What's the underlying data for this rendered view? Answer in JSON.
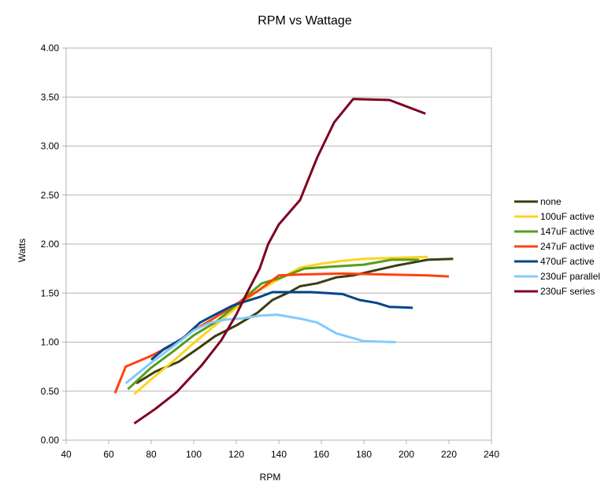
{
  "chart_data": {
    "type": "line",
    "title": "RPM vs Wattage",
    "xlabel": "RPM",
    "ylabel": "Watts",
    "xlim": [
      40,
      240
    ],
    "ylim": [
      0,
      4
    ],
    "xticks": [
      "40",
      "60",
      "80",
      "100",
      "120",
      "140",
      "160",
      "180",
      "200",
      "220",
      "240"
    ],
    "yticks": [
      "0.00",
      "0.50",
      "1.00",
      "1.50",
      "2.00",
      "2.50",
      "3.00",
      "3.50",
      "4.00"
    ],
    "grid": true,
    "legend_position": "right",
    "series": [
      {
        "name": "none",
        "color": "#3d3d0f",
        "points": [
          [
            73,
            0.58
          ],
          [
            82,
            0.7
          ],
          [
            93,
            0.8
          ],
          [
            103,
            0.95
          ],
          [
            110,
            1.06
          ],
          [
            120,
            1.17
          ],
          [
            130,
            1.3
          ],
          [
            137,
            1.43
          ],
          [
            145,
            1.51
          ],
          [
            150,
            1.57
          ],
          [
            158,
            1.6
          ],
          [
            167,
            1.66
          ],
          [
            175,
            1.68
          ],
          [
            185,
            1.73
          ],
          [
            195,
            1.78
          ],
          [
            210,
            1.84
          ],
          [
            222,
            1.85
          ]
        ]
      },
      {
        "name": "100uF active",
        "color": "#ffd320",
        "points": [
          [
            72,
            0.47
          ],
          [
            80,
            0.62
          ],
          [
            90,
            0.8
          ],
          [
            100,
            0.99
          ],
          [
            110,
            1.17
          ],
          [
            120,
            1.35
          ],
          [
            130,
            1.52
          ],
          [
            140,
            1.64
          ],
          [
            150,
            1.76
          ],
          [
            160,
            1.8
          ],
          [
            170,
            1.83
          ],
          [
            180,
            1.85
          ],
          [
            195,
            1.86
          ],
          [
            210,
            1.87
          ]
        ]
      },
      {
        "name": "147uF active",
        "color": "#579d1c",
        "points": [
          [
            69,
            0.52
          ],
          [
            80,
            0.74
          ],
          [
            90,
            0.9
          ],
          [
            100,
            1.07
          ],
          [
            110,
            1.2
          ],
          [
            120,
            1.38
          ],
          [
            132,
            1.6
          ],
          [
            140,
            1.65
          ],
          [
            152,
            1.75
          ],
          [
            165,
            1.77
          ],
          [
            180,
            1.79
          ],
          [
            193,
            1.84
          ],
          [
            206,
            1.84
          ]
        ]
      },
      {
        "name": "247uF active",
        "color": "#ff420e",
        "points": [
          [
            63,
            0.48
          ],
          [
            68,
            0.75
          ],
          [
            80,
            0.86
          ],
          [
            90,
            0.97
          ],
          [
            100,
            1.12
          ],
          [
            110,
            1.25
          ],
          [
            120,
            1.39
          ],
          [
            130,
            1.52
          ],
          [
            140,
            1.68
          ],
          [
            150,
            1.69
          ],
          [
            170,
            1.7
          ],
          [
            190,
            1.69
          ],
          [
            210,
            1.68
          ],
          [
            220,
            1.67
          ]
        ]
      },
      {
        "name": "470uF active",
        "color": "#004586",
        "points": [
          [
            80,
            0.82
          ],
          [
            86,
            0.93
          ],
          [
            95,
            1.04
          ],
          [
            103,
            1.2
          ],
          [
            110,
            1.28
          ],
          [
            118,
            1.37
          ],
          [
            125,
            1.42
          ],
          [
            131,
            1.46
          ],
          [
            137,
            1.51
          ],
          [
            145,
            1.51
          ],
          [
            155,
            1.51
          ],
          [
            163,
            1.5
          ],
          [
            170,
            1.49
          ],
          [
            178,
            1.43
          ],
          [
            186,
            1.4
          ],
          [
            192,
            1.36
          ],
          [
            203,
            1.35
          ]
        ]
      },
      {
        "name": "230uF parallel",
        "color": "#83caff",
        "points": [
          [
            68,
            0.58
          ],
          [
            80,
            0.79
          ],
          [
            90,
            0.95
          ],
          [
            100,
            1.12
          ],
          [
            108,
            1.2
          ],
          [
            115,
            1.23
          ],
          [
            122,
            1.24
          ],
          [
            131,
            1.27
          ],
          [
            139,
            1.28
          ],
          [
            150,
            1.24
          ],
          [
            158,
            1.2
          ],
          [
            167,
            1.09
          ],
          [
            180,
            1.01
          ],
          [
            195,
            1.0
          ]
        ]
      },
      {
        "name": "230uF series",
        "color": "#7e0021",
        "points": [
          [
            72,
            0.17
          ],
          [
            82,
            0.32
          ],
          [
            92,
            0.49
          ],
          [
            104,
            0.77
          ],
          [
            113,
            1.02
          ],
          [
            120,
            1.28
          ],
          [
            125,
            1.5
          ],
          [
            131,
            1.75
          ],
          [
            135,
            2.0
          ],
          [
            140,
            2.2
          ],
          [
            150,
            2.45
          ],
          [
            158,
            2.88
          ],
          [
            166,
            3.24
          ],
          [
            175,
            3.48
          ],
          [
            192,
            3.47
          ],
          [
            209,
            3.33
          ]
        ]
      }
    ]
  }
}
